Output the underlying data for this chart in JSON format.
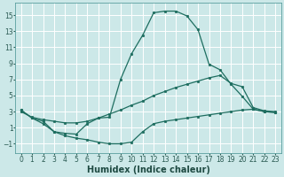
{
  "background_color": "#cce8e8",
  "grid_color": "#ffffff",
  "line_color": "#1e6e60",
  "marker_color": "#1e6e60",
  "xlabel": "Humidex (Indice chaleur)",
  "xlabel_fontsize": 7,
  "tick_fontsize": 5.5,
  "xlim": [
    -0.5,
    23.5
  ],
  "ylim": [
    -2.2,
    16.5
  ],
  "yticks": [
    -1,
    1,
    3,
    5,
    7,
    9,
    11,
    13,
    15
  ],
  "xticks": [
    0,
    1,
    2,
    3,
    4,
    5,
    6,
    7,
    8,
    9,
    10,
    11,
    12,
    13,
    14,
    15,
    16,
    17,
    18,
    19,
    20,
    21,
    22,
    23
  ],
  "series1_x": [
    0,
    1,
    2,
    3,
    4,
    5,
    6,
    7,
    8,
    9,
    10,
    11,
    12,
    13,
    14,
    15,
    16,
    17,
    18,
    19,
    20,
    21,
    22,
    23
  ],
  "series1_y": [
    3.2,
    2.2,
    1.8,
    0.5,
    0.3,
    0.2,
    1.5,
    2.2,
    2.3,
    7.0,
    10.2,
    12.5,
    15.3,
    15.5,
    15.5,
    14.9,
    13.2,
    8.9,
    8.2,
    6.4,
    4.9,
    3.3,
    3.0,
    2.9
  ],
  "series2_x": [
    0,
    1,
    2,
    3,
    4,
    5,
    6,
    7,
    8,
    9,
    10,
    11,
    12,
    13,
    14,
    15,
    16,
    17,
    18,
    19,
    20,
    21,
    22,
    23
  ],
  "series2_y": [
    3.0,
    2.3,
    2.0,
    1.8,
    1.6,
    1.6,
    1.8,
    2.2,
    2.7,
    3.2,
    3.8,
    4.3,
    5.0,
    5.5,
    6.0,
    6.4,
    6.8,
    7.2,
    7.5,
    6.5,
    6.1,
    3.5,
    3.1,
    3.0
  ],
  "series3_x": [
    0,
    1,
    2,
    3,
    4,
    5,
    6,
    7,
    8,
    9,
    10,
    11,
    12,
    13,
    14,
    15,
    16,
    17,
    18,
    19,
    20,
    21,
    22,
    23
  ],
  "series3_y": [
    3.2,
    2.2,
    1.5,
    0.5,
    0.0,
    -0.3,
    -0.5,
    -0.8,
    -1.0,
    -1.0,
    -0.8,
    0.5,
    1.5,
    1.8,
    2.0,
    2.2,
    2.4,
    2.6,
    2.8,
    3.0,
    3.2,
    3.3,
    3.0,
    2.9
  ]
}
